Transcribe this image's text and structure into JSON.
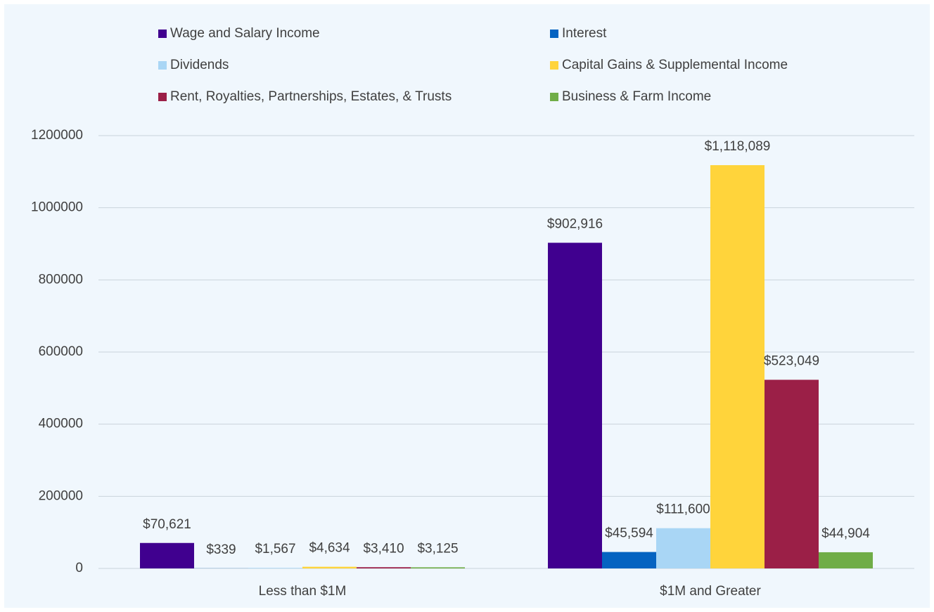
{
  "chart_data": {
    "type": "bar",
    "categories": [
      "Less than $1M",
      "$1M and Greater"
    ],
    "series": [
      {
        "name": "Wage and Salary Income",
        "color": "#40008f",
        "values": [
          70621,
          902916
        ],
        "value_labels": [
          "$70,621",
          "$902,916"
        ]
      },
      {
        "name": "Interest",
        "color": "#0563c1",
        "values": [
          339,
          45594
        ],
        "value_labels": [
          "$339",
          "$45,594"
        ]
      },
      {
        "name": "Dividends",
        "color": "#a9d6f5",
        "values": [
          1567,
          111600
        ],
        "value_labels": [
          "$1,567",
          "$111,600"
        ]
      },
      {
        "name": "Capital Gains & Supplemental Income",
        "color": "#ffd43b",
        "values": [
          4634,
          1118089
        ],
        "value_labels": [
          "$4,634",
          "$1,118,089"
        ]
      },
      {
        "name": "Rent, Royalties, Partnerships, Estates, & Trusts",
        "color": "#9b1f47",
        "values": [
          3410,
          523049
        ],
        "value_labels": [
          "$3,410",
          "$523,049"
        ]
      },
      {
        "name": "Business & Farm Income",
        "color": "#70ad47",
        "values": [
          3125,
          44904
        ],
        "value_labels": [
          "$3,125",
          "$44,904"
        ]
      }
    ],
    "ylim": [
      0,
      1200000
    ],
    "yticks": [
      0,
      200000,
      400000,
      600000,
      800000,
      1000000,
      1200000
    ],
    "grid": true,
    "legend": "top"
  }
}
